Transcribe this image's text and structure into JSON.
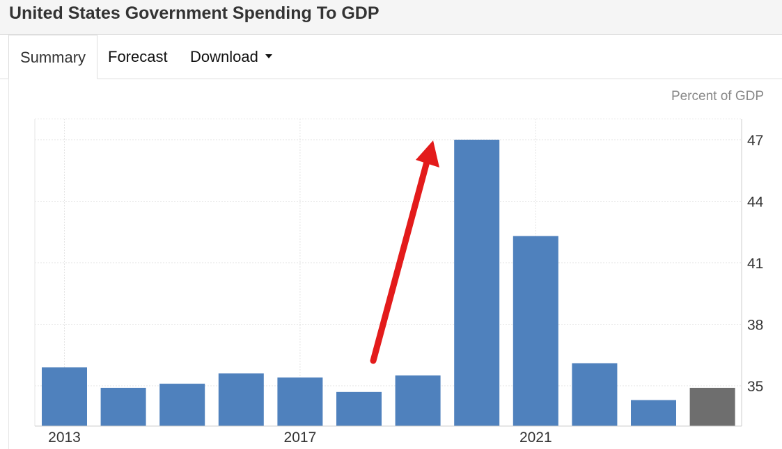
{
  "header": {
    "title": "United States Government Spending To GDP"
  },
  "tabs": [
    {
      "label": "Summary",
      "active": true
    },
    {
      "label": "Forecast",
      "active": false
    },
    {
      "label": "Download",
      "active": false,
      "dropdown": true
    }
  ],
  "colors": {
    "bar": "#4f81bd",
    "bar_latest": "#6e6e6e",
    "annotation_arrow": "#e31b1b"
  },
  "chart_data": {
    "type": "bar",
    "unit_label": "Percent of GDP",
    "categories": [
      "2013",
      "2014",
      "2015",
      "2016",
      "2017",
      "2018",
      "2019",
      "2020",
      "2021",
      "2022",
      "2023",
      "2024"
    ],
    "x_tick_labels": [
      "2013",
      "2017",
      "2021"
    ],
    "values": [
      35.9,
      34.9,
      35.1,
      35.6,
      35.4,
      34.7,
      35.5,
      47.0,
      42.3,
      36.1,
      34.3,
      34.9
    ],
    "highlight_last": true,
    "ylim": [
      33.0,
      48.0
    ],
    "y_ticks": [
      35,
      38,
      41,
      44,
      47
    ],
    "y_axis_position": "right",
    "grid": true,
    "annotation": "red arrow pointing up toward the 2020 peak"
  }
}
